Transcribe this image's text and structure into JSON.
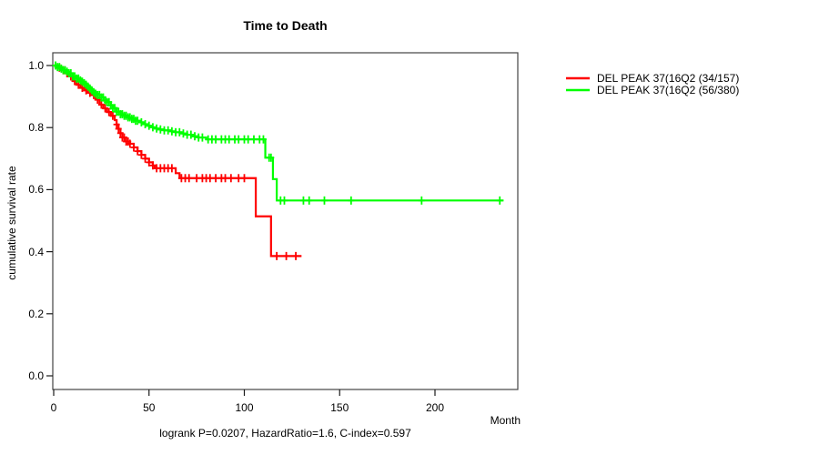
{
  "chart_data": {
    "type": "line",
    "subtype": "kaplan-meier-step",
    "title": "Time to Death",
    "xlabel": "Month",
    "ylabel": "cumulative survival rate",
    "annotation": "logrank P=0.0207, HazardRatio=1.6, C-index=0.597",
    "xlim": [
      0,
      243
    ],
    "ylim": [
      0.0,
      1.0
    ],
    "x_ticks": [
      0,
      50,
      100,
      150,
      200
    ],
    "y_ticks": [
      0.0,
      0.2,
      0.4,
      0.6,
      0.8,
      1.0
    ],
    "grid": false,
    "legend_position": "right-outside",
    "axis_color": "#444444",
    "series": [
      {
        "name": "DEL PEAK 37(16Q2 (34/157)",
        "color": "#ff0000",
        "events": 34,
        "n": 157,
        "end_month": 130,
        "steps": [
          [
            0,
            1.0
          ],
          [
            2,
            0.993
          ],
          [
            4,
            0.985
          ],
          [
            6,
            0.975
          ],
          [
            8,
            0.965
          ],
          [
            10,
            0.95
          ],
          [
            12,
            0.938
          ],
          [
            14,
            0.928
          ],
          [
            16,
            0.92
          ],
          [
            18,
            0.912
          ],
          [
            20,
            0.905
          ],
          [
            22,
            0.89
          ],
          [
            24,
            0.874
          ],
          [
            26,
            0.862
          ],
          [
            28,
            0.85
          ],
          [
            30,
            0.838
          ],
          [
            32,
            0.824
          ],
          [
            33,
            0.81
          ],
          [
            34,
            0.796
          ],
          [
            35,
            0.782
          ],
          [
            36,
            0.768
          ],
          [
            38,
            0.755
          ],
          [
            40,
            0.748
          ],
          [
            42,
            0.736
          ],
          [
            44,
            0.724
          ],
          [
            46,
            0.712
          ],
          [
            48,
            0.7
          ],
          [
            50,
            0.688
          ],
          [
            52,
            0.678
          ],
          [
            53,
            0.669
          ],
          [
            64,
            0.653
          ],
          [
            66,
            0.637
          ],
          [
            106,
            0.514
          ],
          [
            114,
            0.386
          ]
        ],
        "censor_months": [
          3,
          5,
          7,
          9,
          11,
          13,
          15,
          17,
          19,
          21,
          23,
          25,
          27,
          29,
          31,
          33,
          34,
          35,
          36,
          37,
          38,
          39,
          40,
          42,
          44,
          46,
          48,
          50,
          52,
          54,
          56,
          58,
          60,
          62,
          67,
          69,
          71,
          75,
          78,
          80,
          82,
          85,
          88,
          90,
          93,
          97,
          100,
          117,
          122,
          127
        ]
      },
      {
        "name": "DEL PEAK 37(16Q2 (56/380)",
        "color": "#00ff00",
        "events": 56,
        "n": 380,
        "end_month": 236,
        "steps": [
          [
            0,
            1.0
          ],
          [
            2,
            0.995
          ],
          [
            4,
            0.99
          ],
          [
            5,
            0.985
          ],
          [
            7,
            0.98
          ],
          [
            8,
            0.975
          ],
          [
            10,
            0.965
          ],
          [
            12,
            0.958
          ],
          [
            14,
            0.952
          ],
          [
            15,
            0.948
          ],
          [
            16,
            0.943
          ],
          [
            17,
            0.938
          ],
          [
            18,
            0.932
          ],
          [
            19,
            0.926
          ],
          [
            20,
            0.92
          ],
          [
            21,
            0.914
          ],
          [
            22,
            0.909
          ],
          [
            23,
            0.905
          ],
          [
            25,
            0.897
          ],
          [
            27,
            0.888
          ],
          [
            28,
            0.882
          ],
          [
            30,
            0.871
          ],
          [
            31,
            0.863
          ],
          [
            33,
            0.851
          ],
          [
            35,
            0.843
          ],
          [
            37,
            0.838
          ],
          [
            39,
            0.833
          ],
          [
            41,
            0.828
          ],
          [
            43,
            0.822
          ],
          [
            45,
            0.817
          ],
          [
            47,
            0.811
          ],
          [
            49,
            0.806
          ],
          [
            51,
            0.801
          ],
          [
            53,
            0.797
          ],
          [
            55,
            0.794
          ],
          [
            58,
            0.791
          ],
          [
            61,
            0.788
          ],
          [
            64,
            0.785
          ],
          [
            67,
            0.781
          ],
          [
            70,
            0.777
          ],
          [
            73,
            0.772
          ],
          [
            76,
            0.768
          ],
          [
            80,
            0.762
          ],
          [
            111,
            0.703
          ],
          [
            115,
            0.634
          ],
          [
            117,
            0.565
          ]
        ],
        "censor_months": [
          1,
          2,
          3,
          4,
          5,
          6,
          7,
          8,
          9,
          10,
          11,
          12,
          13,
          14,
          15,
          16,
          17,
          18,
          19,
          20,
          21,
          22,
          23,
          24,
          25,
          26,
          27,
          28,
          29,
          30,
          31,
          32,
          33,
          34,
          35,
          36,
          37,
          38,
          39,
          40,
          41,
          42,
          43,
          44,
          46,
          48,
          50,
          52,
          54,
          56,
          58,
          60,
          62,
          64,
          66,
          68,
          70,
          72,
          74,
          76,
          78,
          81,
          83,
          85,
          88,
          90,
          92,
          95,
          97,
          100,
          102,
          105,
          108,
          110,
          113,
          114,
          119,
          121,
          131,
          134,
          142,
          156,
          193,
          234
        ]
      }
    ]
  }
}
